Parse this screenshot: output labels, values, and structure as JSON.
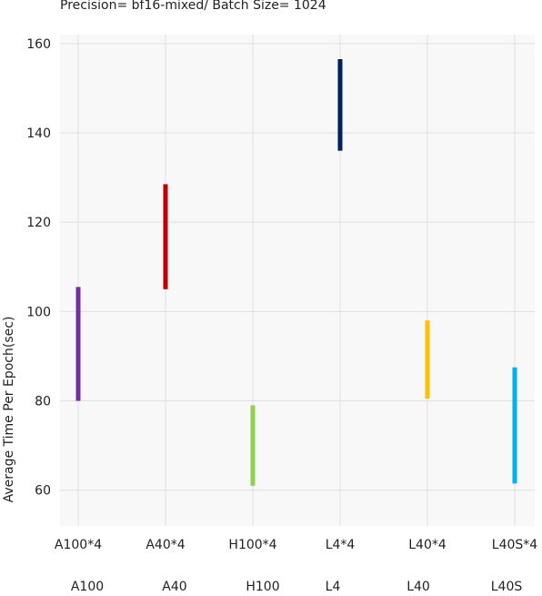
{
  "title": "Precision= bf16-mixed/ Batch Size= 1024",
  "chart_data": {
    "type": "range-bar",
    "title": "Precision= bf16-mixed/ Batch Size= 1024",
    "ylabel": "Average Time Per Epoch(sec)",
    "xlabel": "",
    "ylim": [
      52,
      162
    ],
    "yticks": [
      60,
      80,
      100,
      120,
      140,
      160
    ],
    "grid": true,
    "categories": [
      "A100*4",
      "A40*4",
      "H100*4",
      "L4*4",
      "L40*4",
      "L40S*4"
    ],
    "group_labels": [
      "A100",
      "A40",
      "H100",
      "L4",
      "L40",
      "L40S"
    ],
    "series": [
      {
        "category": "A100*4",
        "low": 80,
        "high": 105.5,
        "color": "#7030a0"
      },
      {
        "category": "A40*4",
        "low": 105,
        "high": 128.5,
        "color": "#c00000"
      },
      {
        "category": "H100*4",
        "low": 61,
        "high": 79,
        "color": "#92d050"
      },
      {
        "category": "L4*4",
        "low": 136,
        "high": 156.5,
        "color": "#002060"
      },
      {
        "category": "L40*4",
        "low": 80.5,
        "high": 98,
        "color": "#ffc000"
      },
      {
        "category": "L40S*4",
        "low": 61.5,
        "high": 87.5,
        "color": "#00b0f0"
      }
    ]
  }
}
